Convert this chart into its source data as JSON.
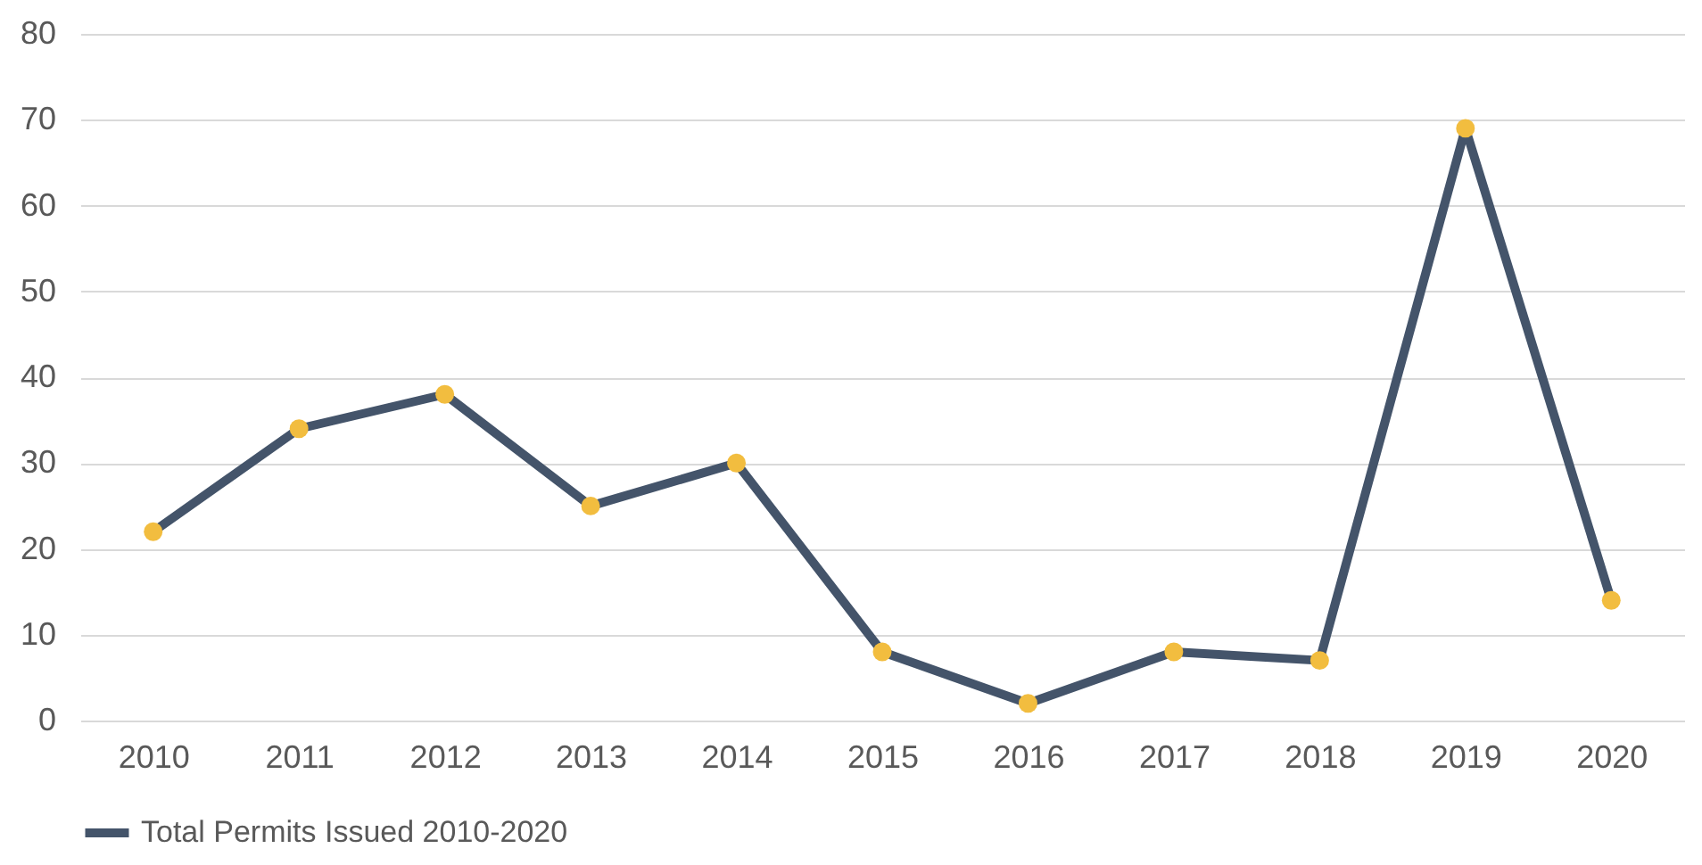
{
  "chart_data": {
    "type": "line",
    "categories": [
      "2010",
      "2011",
      "2012",
      "2013",
      "2014",
      "2015",
      "2016",
      "2017",
      "2018",
      "2019",
      "2020"
    ],
    "series": [
      {
        "name": "Total Permits Issued 2010-2020",
        "color": "#44546a",
        "values": [
          22,
          34,
          38,
          25,
          30,
          8,
          2,
          8,
          7,
          69,
          14
        ]
      }
    ],
    "ylim": [
      0,
      80
    ],
    "yticks": [
      0,
      10,
      20,
      30,
      40,
      50,
      60,
      70,
      80
    ],
    "grid": "y",
    "legend": "bottom",
    "marker": "circle",
    "line_style": "solid"
  }
}
